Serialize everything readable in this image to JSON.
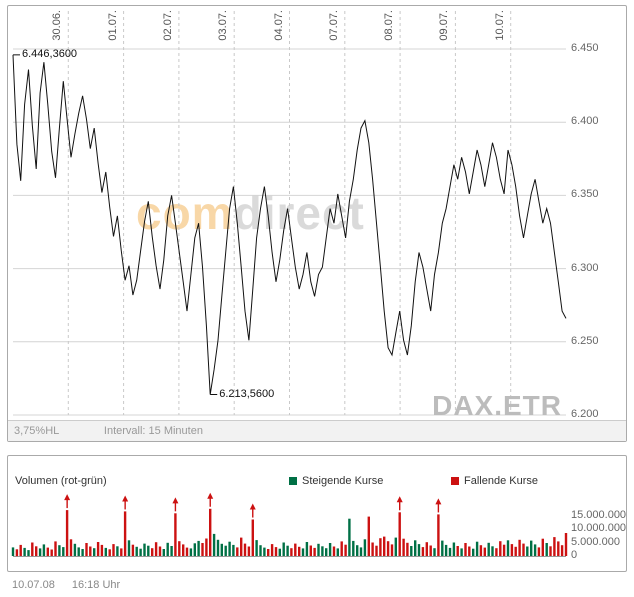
{
  "meta": {
    "footer_date": "10.07.08",
    "footer_time": "16:18 Uhr"
  },
  "price_panel": {
    "watermark": {
      "part1": "com",
      "part2": "direct"
    },
    "symbol": "DAX.ETR",
    "status": {
      "change": "3,75%HL",
      "interval": "Intervall: 15 Minuten"
    },
    "high_label": "6.446,3600",
    "low_label": "6.213,5600"
  },
  "volume_panel": {
    "title": "Volumen (rot-grün)",
    "legend": [
      {
        "label": "Steigende Kurse",
        "color": "#007045"
      },
      {
        "label": "Fallende Kurse",
        "color": "#cc1111"
      }
    ]
  },
  "chart_data": [
    {
      "type": "line",
      "name": "DAX.ETR Kurs, Intervall 15 Minuten",
      "x_labels": [
        "30.06.",
        "01.07.",
        "02.07.",
        "03.07.",
        "04.07.",
        "07.07.",
        "08.07.",
        "09.07.",
        "10.07."
      ],
      "y_tick_labels": [
        "6.450",
        "6.400",
        "6.350",
        "6.300",
        "6.250",
        "6.200"
      ],
      "y_ticks": [
        6450,
        6400,
        6350,
        6300,
        6250,
        6200
      ],
      "ylim": [
        6195,
        6470
      ],
      "high": 6446.36,
      "low": 6213.56,
      "line_color": "#111111",
      "values": [
        6446,
        6385,
        6360,
        6412,
        6436,
        6398,
        6368,
        6420,
        6441,
        6412,
        6380,
        6362,
        6396,
        6428,
        6402,
        6376,
        6392,
        6406,
        6418,
        6402,
        6382,
        6396,
        6372,
        6352,
        6366,
        6342,
        6322,
        6336,
        6312,
        6292,
        6302,
        6282,
        6292,
        6312,
        6332,
        6346,
        6322,
        6302,
        6286,
        6306,
        6336,
        6350,
        6331,
        6311,
        6291,
        6271,
        6296,
        6321,
        6331,
        6301,
        6261,
        6214,
        6231,
        6251,
        6281,
        6311,
        6341,
        6356,
        6331,
        6301,
        6271,
        6251,
        6286,
        6321,
        6341,
        6356,
        6336,
        6311,
        6291,
        6306,
        6326,
        6341,
        6321,
        6301,
        6286,
        6296,
        6311,
        6291,
        6281,
        6296,
        6301,
        6321,
        6341,
        6331,
        6351,
        6336,
        6321,
        6346,
        6361,
        6381,
        6396,
        6401,
        6386,
        6361,
        6331,
        6301,
        6271,
        6246,
        6241,
        6256,
        6271,
        6251,
        6241,
        6261,
        6291,
        6311,
        6301,
        6286,
        6271,
        6296,
        6311,
        6331,
        6341,
        6356,
        6371,
        6361,
        6376,
        6366,
        6351,
        6366,
        6381,
        6371,
        6356,
        6371,
        6386,
        6376,
        6361,
        6351,
        6381,
        6371,
        6356,
        6336,
        6321,
        6336,
        6351,
        6361,
        6346,
        6331,
        6341,
        6331,
        6311,
        6291,
        6271,
        6266
      ]
    },
    {
      "type": "bar",
      "name": "Volumen (rot-grün)",
      "y_tick_labels": [
        "15.000.000",
        "10.000.000",
        "5.000.000",
        "0"
      ],
      "y_ticks": [
        15000000,
        10000000,
        5000000,
        0
      ],
      "ylim": [
        0,
        18500000
      ],
      "unit": "millions",
      "up_color": "#007045",
      "down_color": "#cc1111",
      "arrow_indices": [
        14,
        29,
        42,
        51,
        62,
        100,
        110
      ],
      "values_millions": [
        3.2,
        2.5,
        4.1,
        3.0,
        2.2,
        5.0,
        3.6,
        2.8,
        4.3,
        3.1,
        2.4,
        5.4,
        4.0,
        3.3,
        17.0,
        6.2,
        4.5,
        3.2,
        2.6,
        4.8,
        3.5,
        2.9,
        5.2,
        4.1,
        3.0,
        2.5,
        4.4,
        3.6,
        2.8,
        16.5,
        5.8,
        4.2,
        3.4,
        2.7,
        4.6,
        3.8,
        2.9,
        5.1,
        3.5,
        2.6,
        4.9,
        3.7,
        15.8,
        5.5,
        4.3,
        3.1,
        2.8,
        4.7,
        5.6,
        4.8,
        6.5,
        17.5,
        8.2,
        6.0,
        4.5,
        3.8,
        5.3,
        4.1,
        3.2,
        6.8,
        4.6,
        3.5,
        13.5,
        5.9,
        4.0,
        3.1,
        2.6,
        4.4,
        3.3,
        2.7,
        5.0,
        3.8,
        2.9,
        4.6,
        3.4,
        2.8,
        5.2,
        3.9,
        3.0,
        4.5,
        3.6,
        2.9,
        4.8,
        3.5,
        2.8,
        5.4,
        4.2,
        13.8,
        5.6,
        4.0,
        3.2,
        6.2,
        14.6,
        5.0,
        3.8,
        6.6,
        7.2,
        5.5,
        4.3,
        6.8,
        16.2,
        6.4,
        4.9,
        3.7,
        5.8,
        4.4,
        3.3,
        5.1,
        3.9,
        2.9,
        15.4,
        5.7,
        4.1,
        3.0,
        5.0,
        3.7,
        2.8,
        4.8,
        3.5,
        2.7,
        5.3,
        4.0,
        3.1,
        4.9,
        3.6,
        2.9,
        5.5,
        4.2,
        5.8,
        4.4,
        3.4,
        6.0,
        4.6,
        3.5,
        5.7,
        4.3,
        3.2,
        6.4,
        4.8,
        3.6,
        7.0,
        5.4,
        4.0,
        8.5
      ]
    }
  ]
}
